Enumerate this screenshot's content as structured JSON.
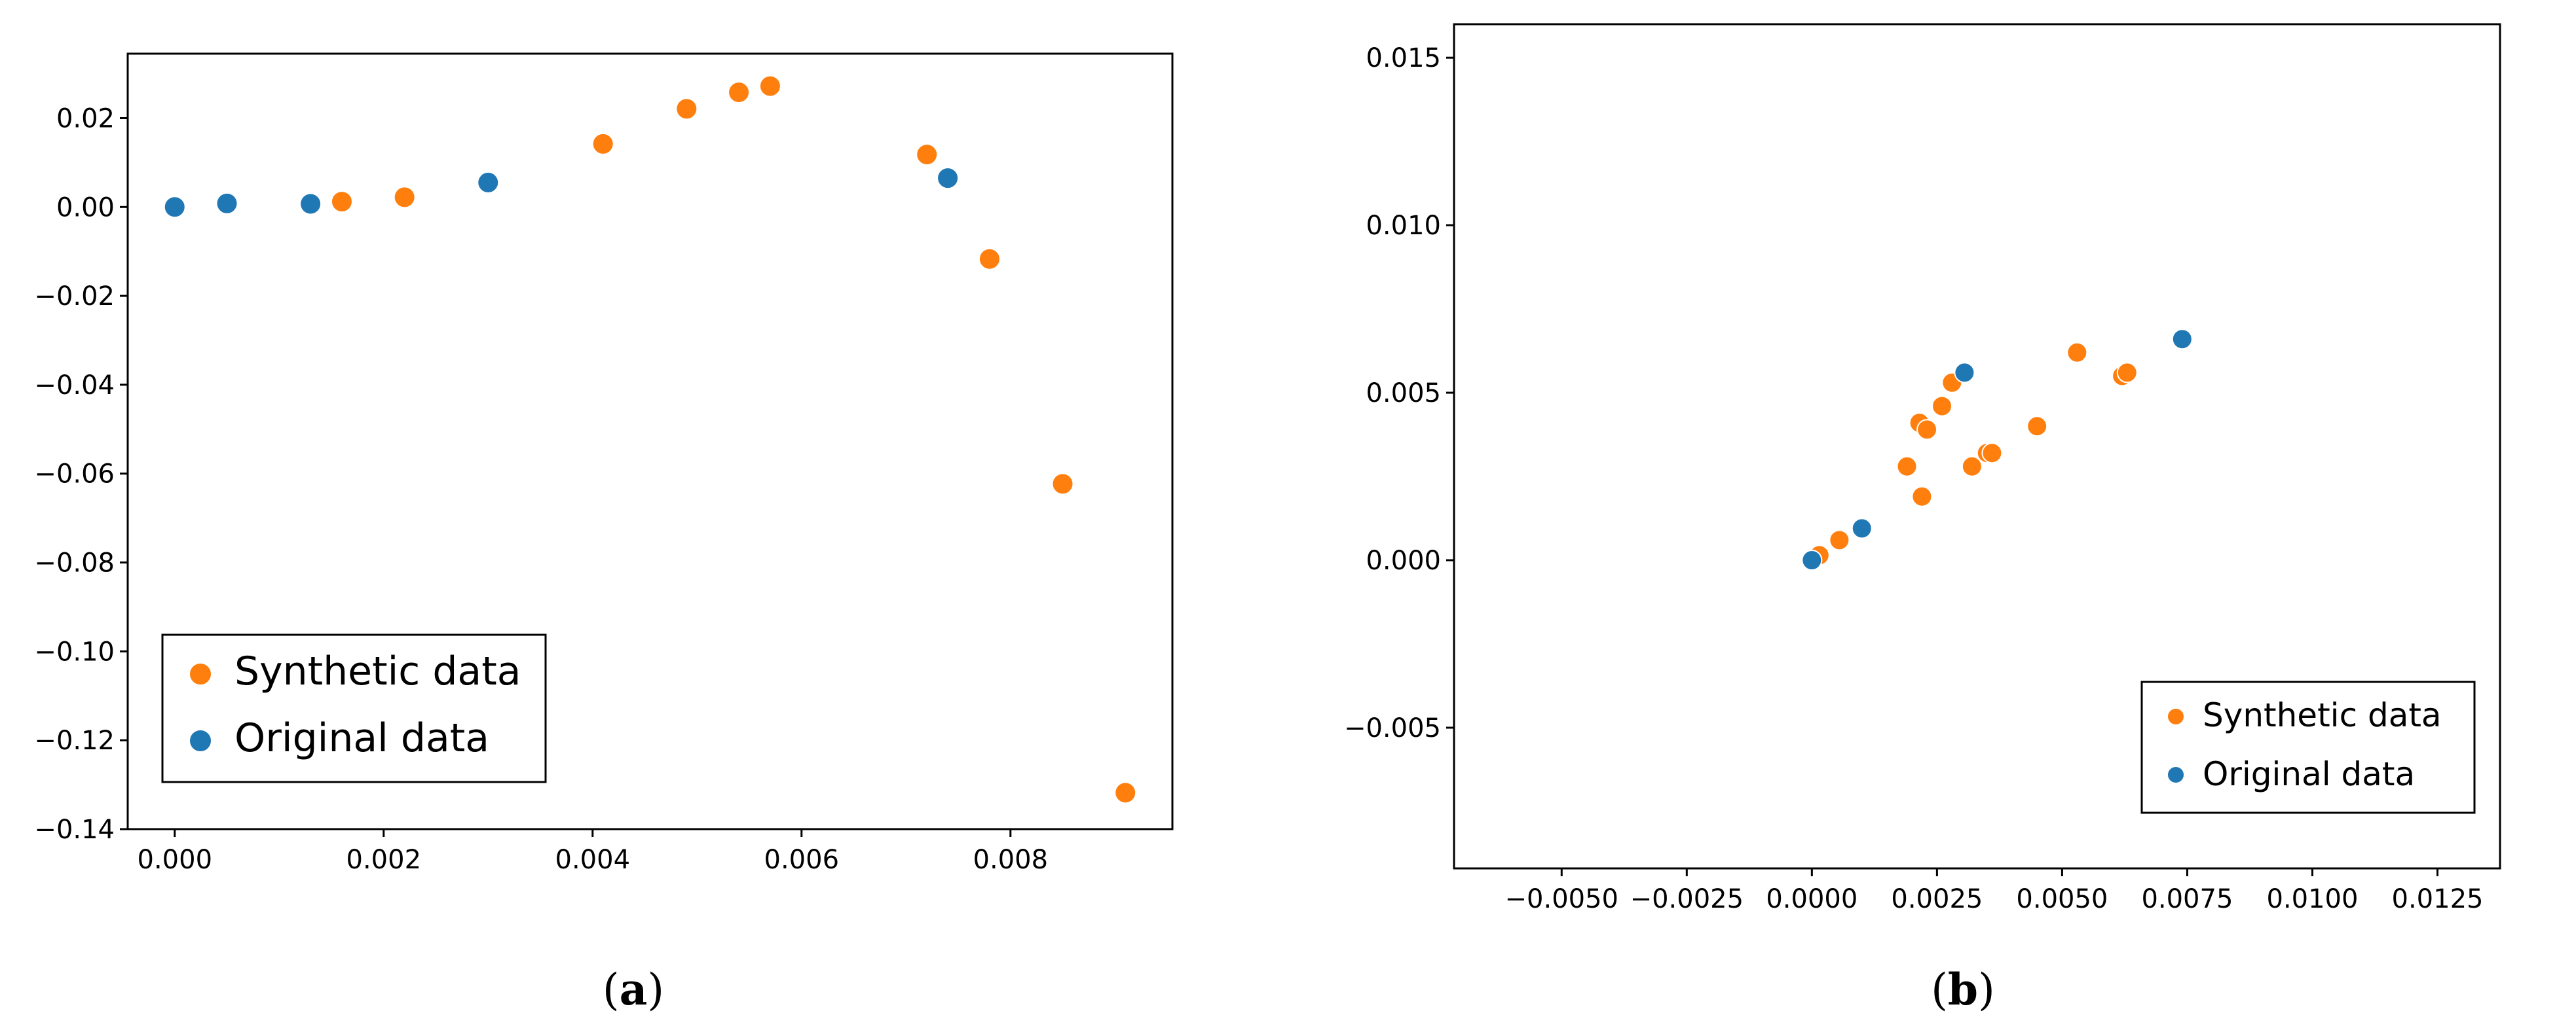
{
  "captions": [
    {
      "open": "(",
      "letter": "a",
      "close": ")"
    },
    {
      "open": "(",
      "letter": "b",
      "close": ")"
    }
  ],
  "chart_data": [
    {
      "type": "scatter",
      "title": "",
      "xlabel": "",
      "ylabel": "",
      "xlim": [
        -0.00045,
        0.00955
      ],
      "ylim": [
        -0.14,
        0.0345
      ],
      "xticks": [
        0.0,
        0.002,
        0.004,
        0.006,
        0.008
      ],
      "xtick_labels": [
        "0.000",
        "0.002",
        "0.004",
        "0.006",
        "0.008"
      ],
      "yticks": [
        0.02,
        0.0,
        -0.02,
        -0.04,
        -0.06,
        -0.08,
        -0.1,
        -0.12,
        -0.14
      ],
      "ytick_labels": [
        "0.02",
        "0.00",
        "−0.02",
        "−0.04",
        "−0.06",
        "−0.08",
        "−0.10",
        "−0.12",
        "−0.14"
      ],
      "grid": false,
      "legend_placement": "lower-left",
      "series": [
        {
          "name": "Synthetic data",
          "color": "#ff7f0e",
          "points": [
            [
              0.0016,
              0.0012
            ],
            [
              0.0022,
              0.0022
            ],
            [
              0.0041,
              0.0142
            ],
            [
              0.0049,
              0.0221
            ],
            [
              0.0054,
              0.0258
            ],
            [
              0.0057,
              0.0272
            ],
            [
              0.0072,
              0.0118
            ],
            [
              0.0078,
              -0.0117
            ],
            [
              0.0085,
              -0.0623
            ],
            [
              0.0091,
              -0.1318
            ]
          ]
        },
        {
          "name": "Original data",
          "color": "#1f77b4",
          "points": [
            [
              0.0,
              0.0
            ],
            [
              0.0005,
              0.0008
            ],
            [
              0.0013,
              0.0007
            ],
            [
              0.003,
              0.0055
            ],
            [
              0.0074,
              0.0065
            ]
          ]
        }
      ]
    },
    {
      "type": "scatter",
      "title": "",
      "xlabel": "",
      "ylabel": "",
      "xlim": [
        -0.00715,
        0.01375
      ],
      "ylim": [
        -0.0092,
        0.016
      ],
      "xticks": [
        -0.005,
        -0.0025,
        0.0,
        0.0025,
        0.005,
        0.0075,
        0.01,
        0.0125
      ],
      "xtick_labels": [
        "−0.0050",
        "−0.0025",
        "0.0000",
        "0.0025",
        "0.0050",
        "0.0075",
        "0.0100",
        "0.0125"
      ],
      "yticks": [
        0.015,
        0.01,
        0.005,
        0.0,
        -0.005
      ],
      "ytick_labels": [
        "0.015",
        "0.010",
        "0.005",
        "0.000",
        "−0.005"
      ],
      "grid": false,
      "legend_placement": "lower-right",
      "series": [
        {
          "name": "Synthetic data",
          "color": "#ff7f0e",
          "points": [
            [
              0.00015,
              0.00015
            ],
            [
              0.00055,
              0.0006
            ],
            [
              0.0019,
              0.0028
            ],
            [
              0.00215,
              0.0041
            ],
            [
              0.0022,
              0.0019
            ],
            [
              0.0023,
              0.0039
            ],
            [
              0.0026,
              0.0046
            ],
            [
              0.0028,
              0.0053
            ],
            [
              0.0032,
              0.0028
            ],
            [
              0.0035,
              0.0032
            ],
            [
              0.0036,
              0.0032
            ],
            [
              0.0045,
              0.004
            ],
            [
              0.0053,
              0.0062
            ],
            [
              0.0062,
              0.0055
            ],
            [
              0.0063,
              0.0056
            ]
          ]
        },
        {
          "name": "Original data",
          "color": "#1f77b4",
          "points": [
            [
              0.0,
              0.0
            ],
            [
              0.001,
              0.00095
            ],
            [
              0.00305,
              0.0056
            ],
            [
              0.0074,
              0.0066
            ]
          ]
        }
      ]
    }
  ]
}
